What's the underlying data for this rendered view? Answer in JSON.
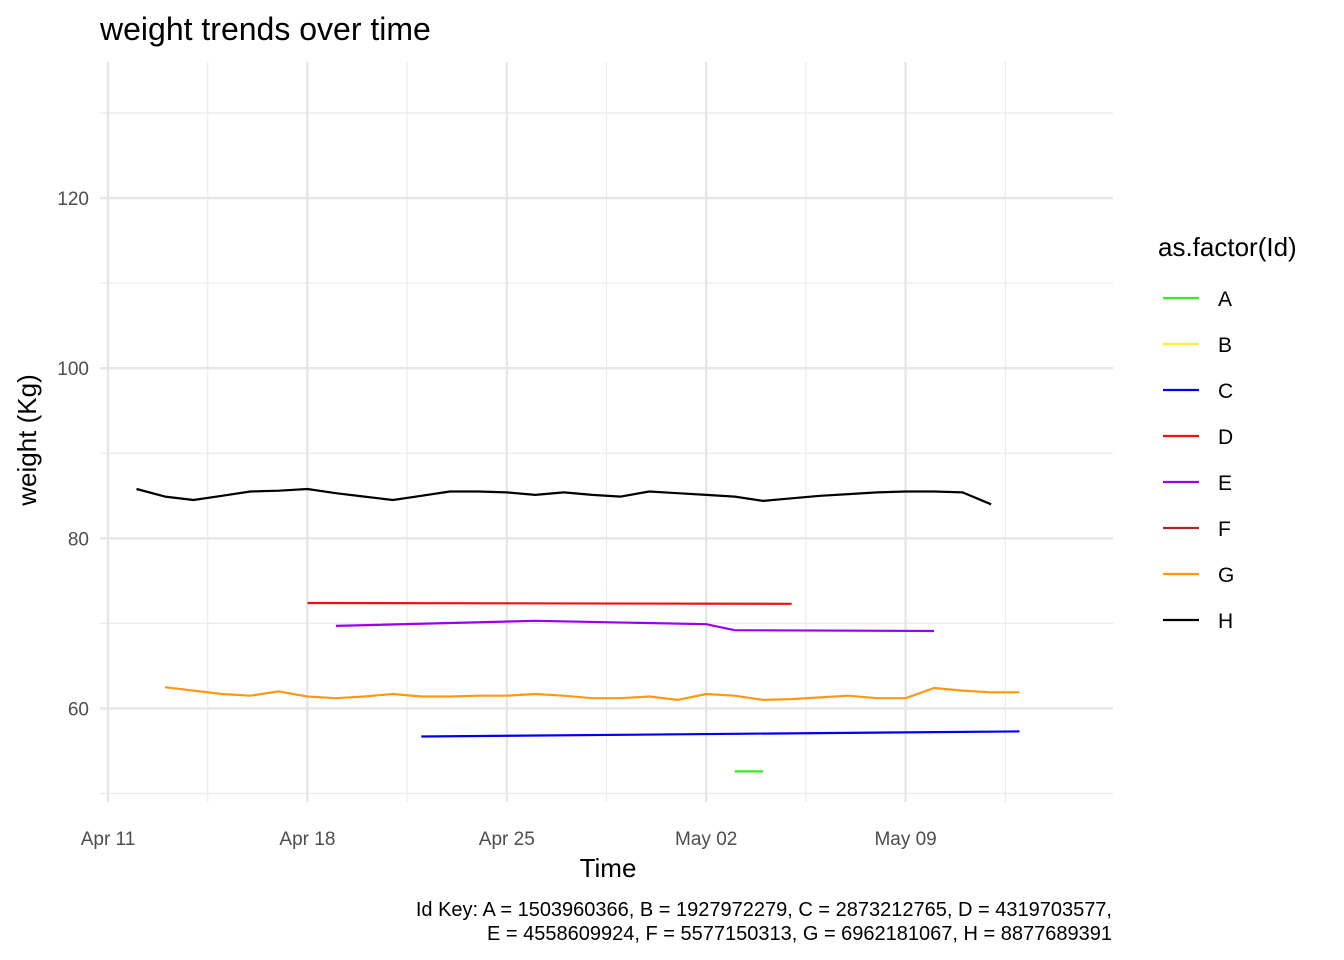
{
  "chart_data": {
    "type": "line",
    "title": "weight trends over time",
    "xlabel": "Time",
    "ylabel": "weight (Kg)",
    "legend_title": "as.factor(Id)",
    "legend_position": "right",
    "grid": true,
    "x_scale": "date",
    "xlim": [
      "2016-04-11",
      "2016-05-16"
    ],
    "ylim": [
      49,
      136
    ],
    "x_ticks": [
      {
        "date": "2016-04-11",
        "label": "Apr 11"
      },
      {
        "date": "2016-04-18",
        "label": "Apr 18"
      },
      {
        "date": "2016-04-25",
        "label": "Apr 25"
      },
      {
        "date": "2016-05-02",
        "label": "May 02"
      },
      {
        "date": "2016-05-09",
        "label": "May 09"
      }
    ],
    "y_ticks": [
      60,
      80,
      100,
      120
    ],
    "caption": [
      "Id Key: A = 1503960366, B = 1927972279, C = 2873212765, D = 4319703577,",
      "E = 4558609924, F = 5577150313, G = 6962181067, H = 8877689391"
    ],
    "series": [
      {
        "name": "A",
        "color": "#33ee22",
        "points": [
          [
            "2016-05-03",
            52.6
          ],
          [
            "2016-05-04",
            52.6
          ]
        ]
      },
      {
        "name": "B",
        "color": "#ffee33",
        "points": []
      },
      {
        "name": "C",
        "color": "#0000ee",
        "points": [
          [
            "2016-04-22",
            56.7
          ],
          [
            "2016-05-13",
            57.3
          ]
        ]
      },
      {
        "name": "D",
        "color": "#ee1111",
        "points": [
          [
            "2016-04-18",
            72.4
          ],
          [
            "2016-05-05",
            72.3
          ]
        ]
      },
      {
        "name": "E",
        "color": "#9900ee",
        "points": [
          [
            "2016-04-19",
            69.7
          ],
          [
            "2016-04-26",
            70.3
          ],
          [
            "2016-05-02",
            69.9
          ],
          [
            "2016-05-03",
            69.2
          ],
          [
            "2016-05-10",
            69.1
          ]
        ]
      },
      {
        "name": "F",
        "color": "#a52a2a",
        "points": []
      },
      {
        "name": "G",
        "color": "#ff9911",
        "points": [
          [
            "2016-04-13",
            62.5
          ],
          [
            "2016-04-14",
            62.1
          ],
          [
            "2016-04-15",
            61.7
          ],
          [
            "2016-04-16",
            61.5
          ],
          [
            "2016-04-17",
            62.0
          ],
          [
            "2016-04-18",
            61.4
          ],
          [
            "2016-04-19",
            61.2
          ],
          [
            "2016-04-20",
            61.4
          ],
          [
            "2016-04-21",
            61.7
          ],
          [
            "2016-04-22",
            61.4
          ],
          [
            "2016-04-23",
            61.4
          ],
          [
            "2016-04-24",
            61.5
          ],
          [
            "2016-04-25",
            61.5
          ],
          [
            "2016-04-26",
            61.7
          ],
          [
            "2016-04-27",
            61.5
          ],
          [
            "2016-04-28",
            61.2
          ],
          [
            "2016-04-29",
            61.2
          ],
          [
            "2016-04-30",
            61.4
          ],
          [
            "2016-05-01",
            61.0
          ],
          [
            "2016-05-02",
            61.7
          ],
          [
            "2016-05-03",
            61.5
          ],
          [
            "2016-05-04",
            61.0
          ],
          [
            "2016-05-05",
            61.1
          ],
          [
            "2016-05-06",
            61.3
          ],
          [
            "2016-05-07",
            61.5
          ],
          [
            "2016-05-08",
            61.2
          ],
          [
            "2016-05-09",
            61.2
          ],
          [
            "2016-05-10",
            62.4
          ],
          [
            "2016-05-11",
            62.1
          ],
          [
            "2016-05-12",
            61.9
          ],
          [
            "2016-05-13",
            61.9
          ]
        ]
      },
      {
        "name": "H",
        "color": "#000000",
        "points": [
          [
            "2016-04-12",
            85.8
          ],
          [
            "2016-04-13",
            84.9
          ],
          [
            "2016-04-14",
            84.5
          ],
          [
            "2016-04-15",
            85.0
          ],
          [
            "2016-04-16",
            85.5
          ],
          [
            "2016-04-17",
            85.6
          ],
          [
            "2016-04-18",
            85.8
          ],
          [
            "2016-04-19",
            85.3
          ],
          [
            "2016-04-20",
            84.9
          ],
          [
            "2016-04-21",
            84.5
          ],
          [
            "2016-04-22",
            85.0
          ],
          [
            "2016-04-23",
            85.5
          ],
          [
            "2016-04-24",
            85.5
          ],
          [
            "2016-04-25",
            85.4
          ],
          [
            "2016-04-26",
            85.1
          ],
          [
            "2016-04-27",
            85.4
          ],
          [
            "2016-04-28",
            85.1
          ],
          [
            "2016-04-29",
            84.9
          ],
          [
            "2016-04-30",
            85.5
          ],
          [
            "2016-05-01",
            85.3
          ],
          [
            "2016-05-02",
            85.1
          ],
          [
            "2016-05-03",
            84.9
          ],
          [
            "2016-05-04",
            84.4
          ],
          [
            "2016-05-05",
            84.7
          ],
          [
            "2016-05-06",
            85.0
          ],
          [
            "2016-05-07",
            85.2
          ],
          [
            "2016-05-08",
            85.4
          ],
          [
            "2016-05-09",
            85.5
          ],
          [
            "2016-05-10",
            85.5
          ],
          [
            "2016-05-11",
            85.4
          ],
          [
            "2016-05-12",
            84.0
          ]
        ]
      }
    ]
  }
}
